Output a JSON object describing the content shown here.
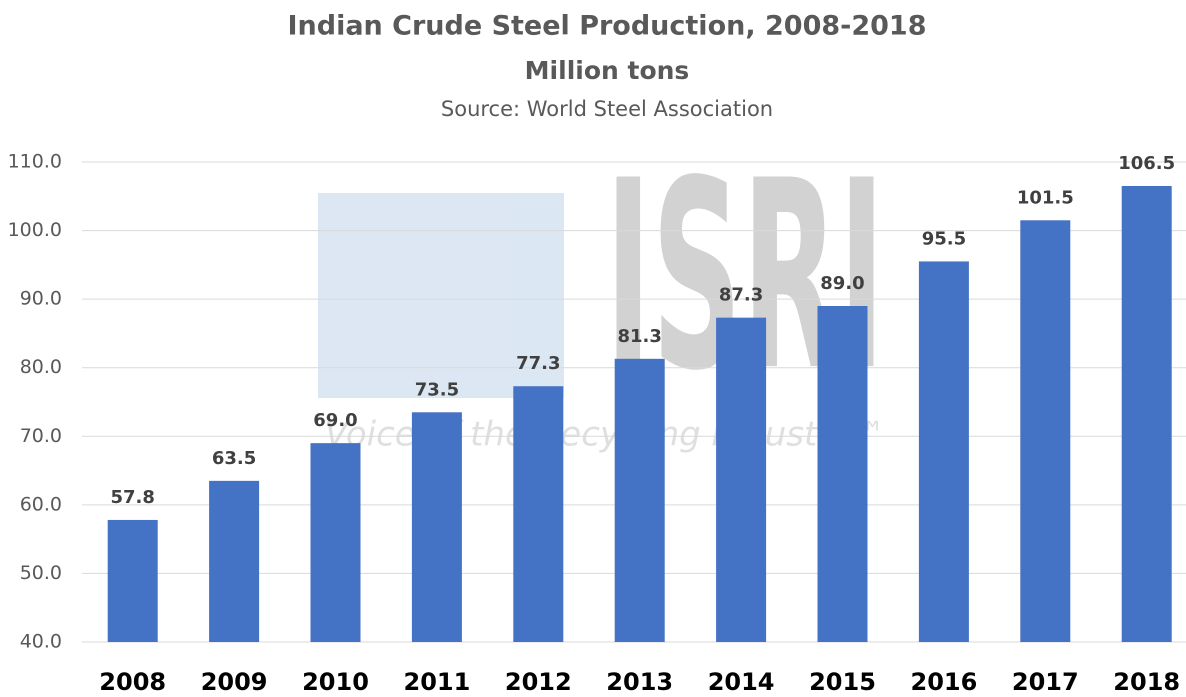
{
  "chart_data": {
    "type": "bar",
    "title": "Indian Crude Steel Production, 2008-2018",
    "subtitle": "Million tons",
    "source": "Source: World Steel Association",
    "watermark": {
      "text": "ISRI",
      "tagline": "Voice of the Recycling Industry™"
    },
    "categories": [
      "2008",
      "2009",
      "2010",
      "2011",
      "2012",
      "2013",
      "2014",
      "2015",
      "2016",
      "2017",
      "2018"
    ],
    "values": [
      57.8,
      63.5,
      69.0,
      73.5,
      77.3,
      81.3,
      87.3,
      89.0,
      95.5,
      101.5,
      106.5
    ],
    "value_labels": [
      "57.8",
      "63.5",
      "69.0",
      "73.5",
      "77.3",
      "81.3",
      "87.3",
      "89.0",
      "95.5",
      "101.5",
      "106.5"
    ],
    "color": "#4472c4",
    "ylim": [
      40,
      110
    ],
    "yticks": [
      {
        "value": 40,
        "label": "40.0"
      },
      {
        "value": 50,
        "label": "50.0"
      },
      {
        "value": 60,
        "label": "60.0"
      },
      {
        "value": 70,
        "label": "70.0"
      },
      {
        "value": 80,
        "label": "80.0"
      },
      {
        "value": 90,
        "label": "90.0"
      },
      {
        "value": 100,
        "label": "100.0"
      },
      {
        "value": 110,
        "label": "110.0"
      }
    ],
    "grid": true
  }
}
